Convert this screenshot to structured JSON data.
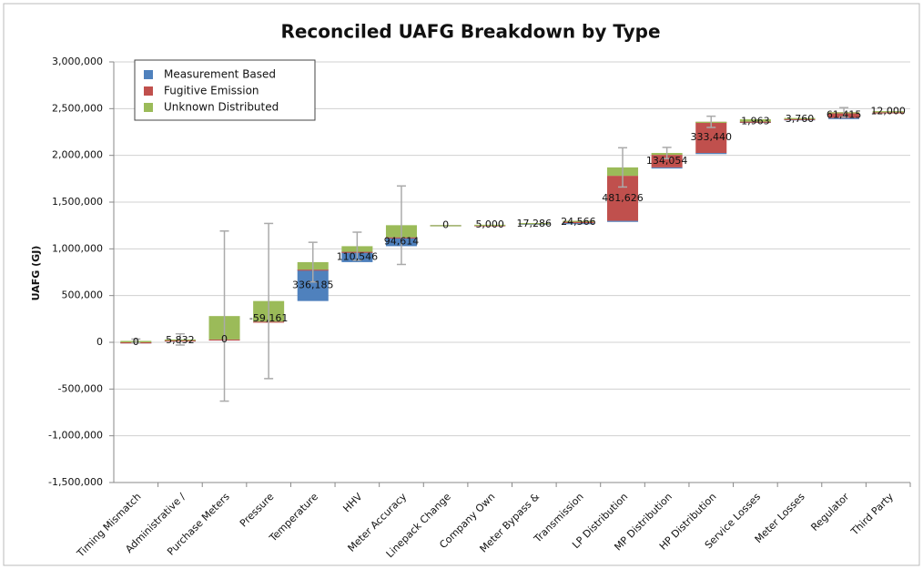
{
  "chart_data": {
    "type": "waterfall",
    "title": "Reconciled UAFG Breakdown by Type",
    "y_label": "UAFG (GJ)",
    "categories": [
      "Timing Mismatch",
      "Administrative /",
      "Purchase Meters",
      "Pressure",
      "Temperature",
      "HHV",
      "Meter Accuracy",
      "Linepack Change",
      "Company Own",
      "Meter Bypass &",
      "Transmission",
      "LP Distribution",
      "MP Distribution",
      "HP Distribution",
      "Service Losses",
      "Meter Losses",
      "Regulator",
      "Third Party"
    ],
    "series": [
      {
        "name": "Measurement Based",
        "color": "#4f81bd",
        "values": [
          0,
          5832,
          0,
          -59161,
          336185,
          110546,
          94614,
          0,
          0,
          17286,
          0,
          0,
          0,
          0,
          0,
          0,
          0,
          0
        ],
        "value_labels": [
          "0",
          "5,832",
          "0",
          "-59,161",
          "336,185",
          "110,546",
          "94,614",
          "0",
          null,
          "17,286",
          null,
          null,
          null,
          null,
          null,
          null,
          null,
          null
        ]
      },
      {
        "name": "Fugitive Emission",
        "color": "#c0504d",
        "values": [
          0,
          0,
          0,
          0,
          0,
          0,
          0,
          0,
          0,
          0,
          24566,
          481626,
          134054,
          333440,
          1963,
          3760,
          61415,
          0
        ],
        "value_labels": [
          null,
          null,
          null,
          null,
          null,
          null,
          null,
          null,
          null,
          null,
          "24,566",
          "481,626",
          "134,054",
          "333,440",
          "1,963",
          "3,760",
          "61,415",
          null
        ]
      },
      {
        "name": "Unknown Distributed",
        "color": "#9bbb59",
        "values": [
          15000,
          10000,
          250000,
          220000,
          80000,
          60000,
          130000,
          0,
          5000,
          0,
          0,
          90000,
          20000,
          0,
          25000,
          10000,
          0,
          12000
        ],
        "value_labels": [
          null,
          null,
          null,
          null,
          null,
          null,
          null,
          null,
          "5,000",
          null,
          null,
          null,
          null,
          null,
          null,
          null,
          null,
          "12,000"
        ],
        "errors": [
          20000,
          60000,
          910000,
          830000,
          212000,
          150000,
          420000,
          null,
          null,
          null,
          null,
          210000,
          60000,
          60000,
          null,
          null,
          50000,
          null
        ]
      }
    ],
    "ylim": [
      -1500000,
      3000000
    ],
    "yticks": [
      {
        "value": -1500000,
        "label": "-1,500,000"
      },
      {
        "value": -1000000,
        "label": "-1,000,000"
      },
      {
        "value": -500000,
        "label": "-500,000"
      },
      0,
      {
        "value": 500000,
        "label": "500,000"
      },
      {
        "value": 1000000,
        "label": "1,000,000"
      },
      {
        "value": 1500000,
        "label": "1,500,000"
      },
      {
        "value": 2000000,
        "label": "2,000,000"
      },
      {
        "value": 2500000,
        "label": "2,500,000"
      },
      {
        "value": 3000000,
        "label": "3,000,000"
      }
    ],
    "grid": true,
    "legend": "top-left"
  }
}
